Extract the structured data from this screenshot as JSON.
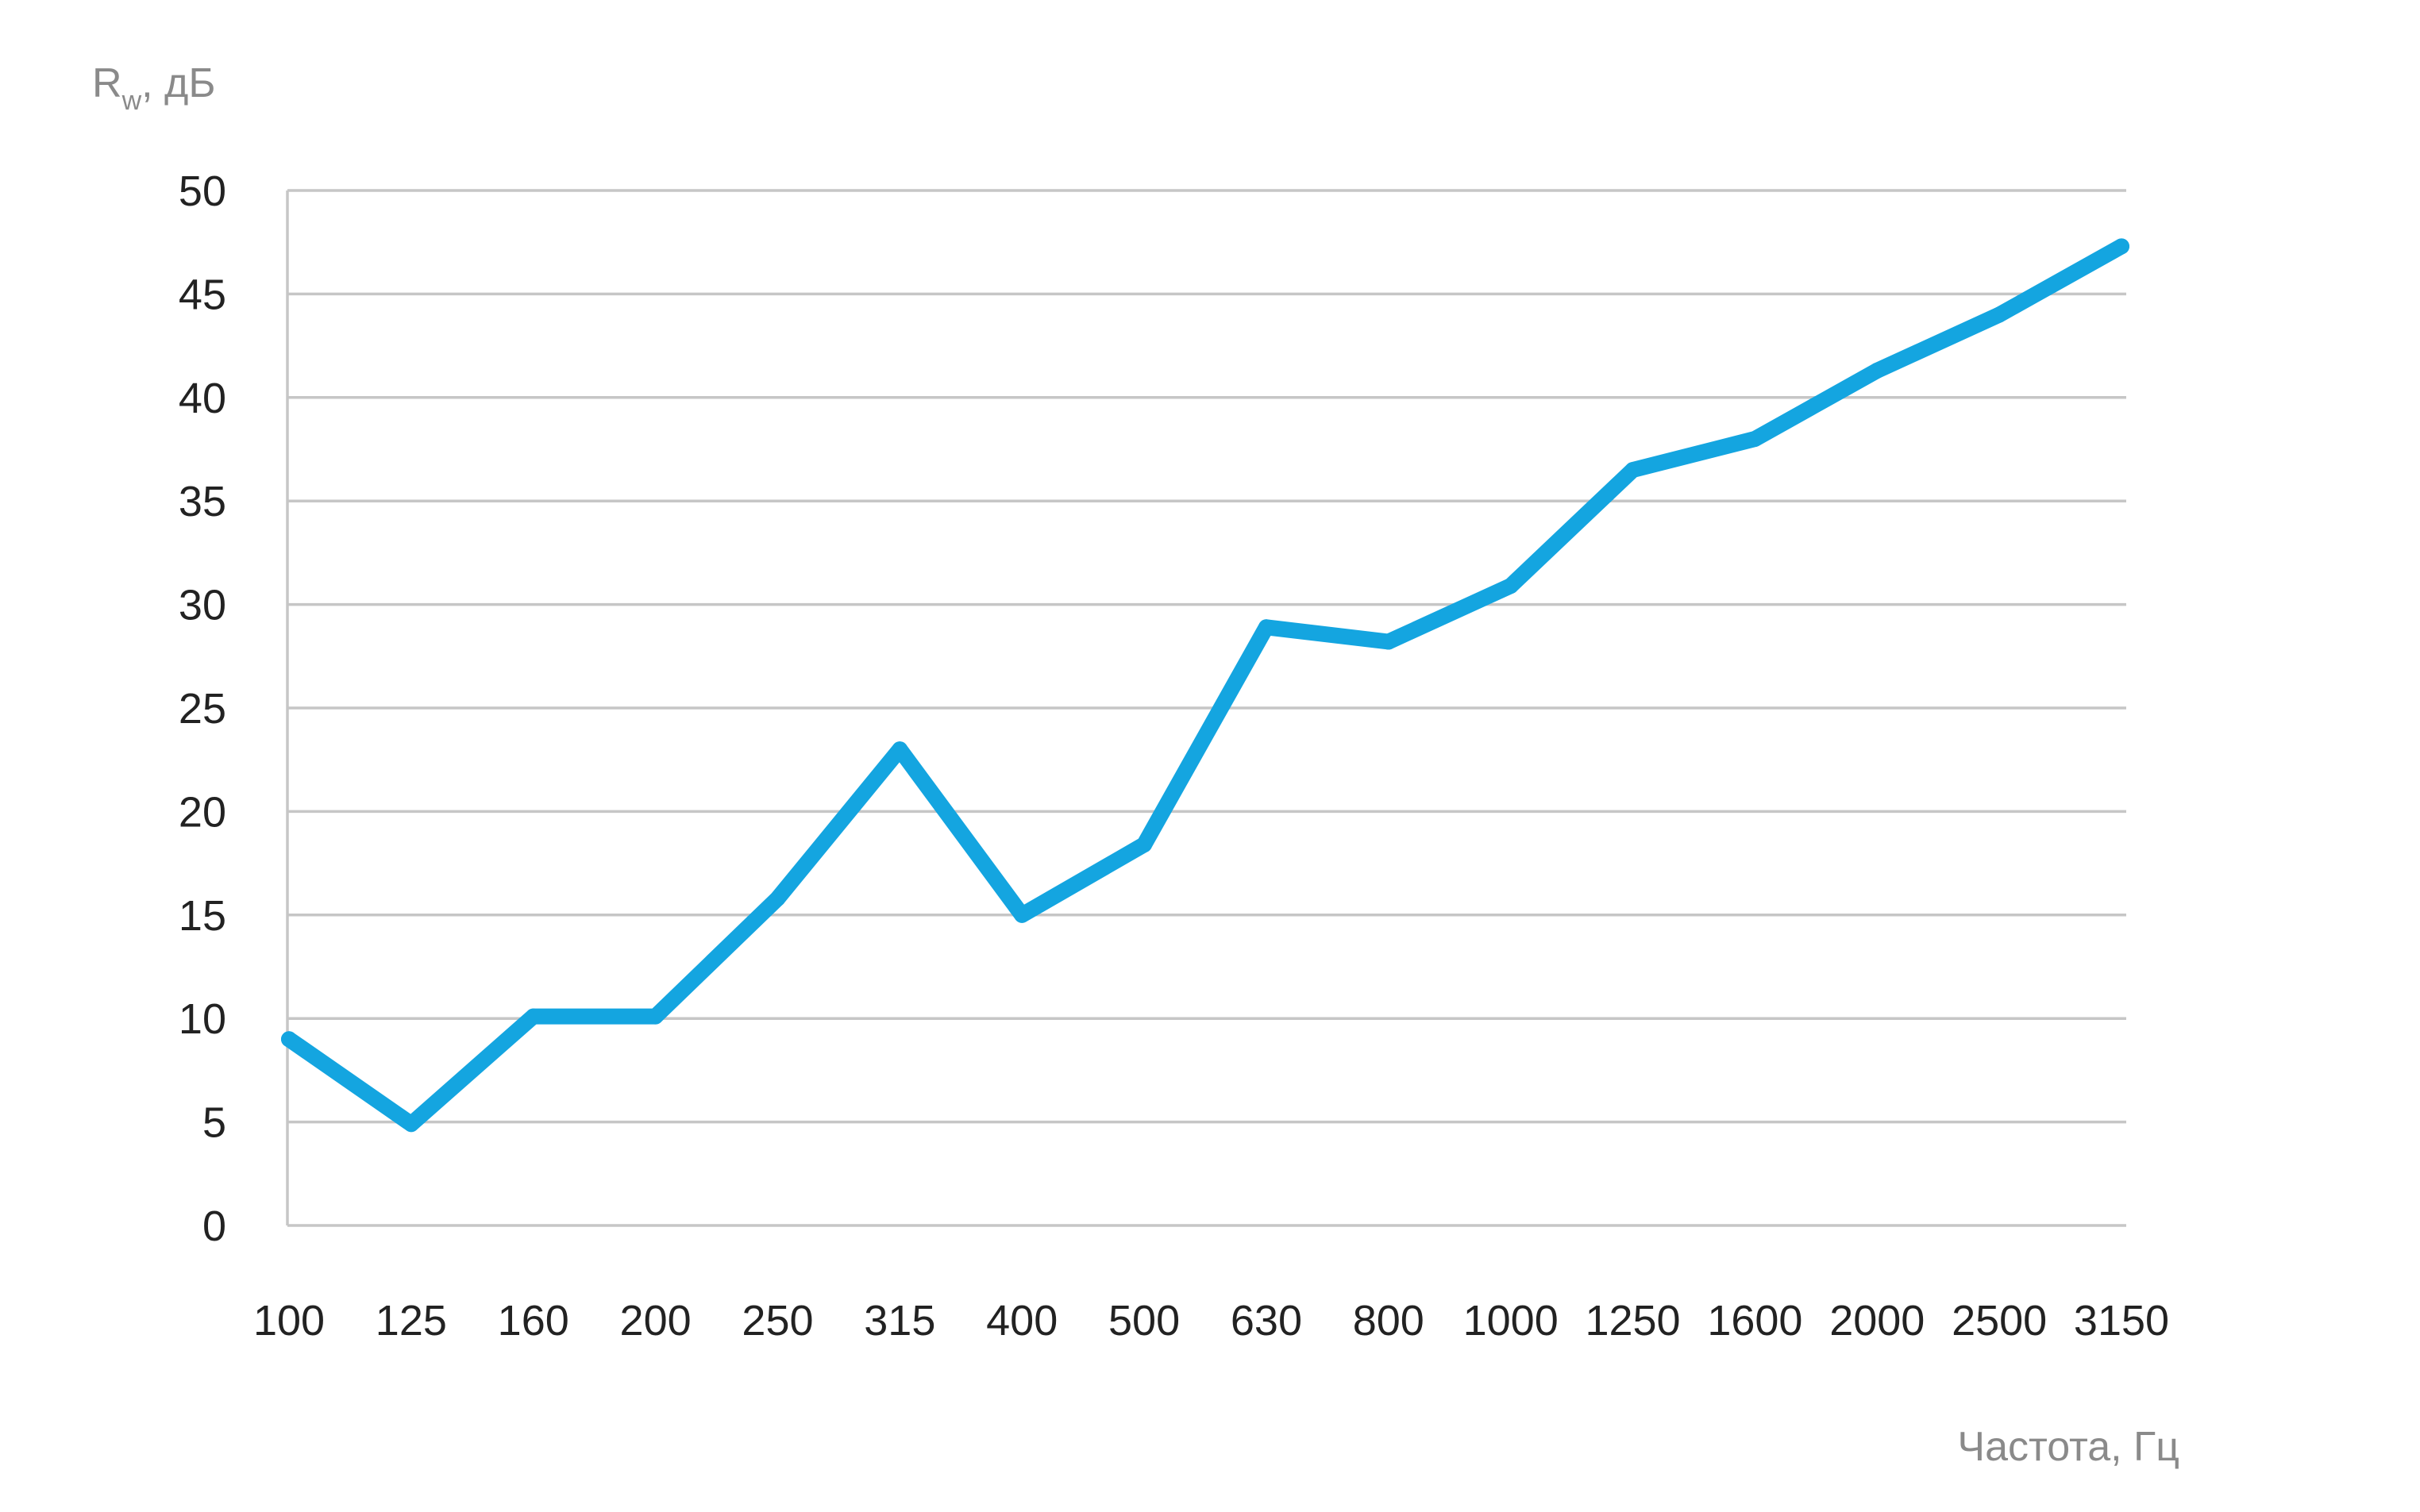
{
  "chart_data": {
    "type": "line",
    "ylabel": {
      "main": "R",
      "subscript": "w",
      "suffix": ", дБ"
    },
    "xlabel": "Частота, Гц",
    "categories": [
      "100",
      "125",
      "160",
      "200",
      "250",
      "315",
      "400",
      "500",
      "630",
      "800",
      "1000",
      "1250",
      "1600",
      "2000",
      "2500",
      "3150"
    ],
    "yticks": [
      "0",
      "5",
      "10",
      "15",
      "20",
      "25",
      "30",
      "35",
      "40",
      "45",
      "50"
    ],
    "ylim": [
      0,
      50
    ],
    "grid": true,
    "series": [
      {
        "color": "#14a5e0",
        "values": [
          9,
          4.9,
          10.1,
          10.1,
          15.8,
          23,
          15,
          18.4,
          28.9,
          28.2,
          30.9,
          36.5,
          38,
          41.3,
          44,
          47.3
        ]
      }
    ]
  }
}
